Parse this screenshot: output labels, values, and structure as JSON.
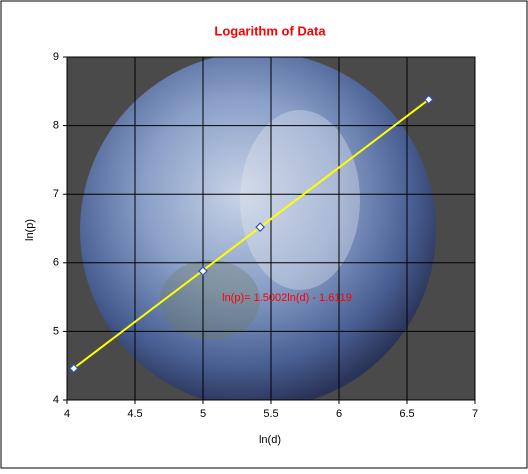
{
  "chart_data": {
    "type": "scatter",
    "title": "Logarithm of Data",
    "x_label": "ln(d)",
    "y_label": "ln(p)",
    "series": [
      {
        "name": "ln(p)",
        "color": "#3050c0",
        "x": [
          4.05,
          5.0,
          5.42,
          6.66
        ],
        "values": [
          4.46,
          5.88,
          6.52,
          8.38
        ]
      }
    ],
    "trendline": {
      "label": "ln(p)= 1.5002ln(d) - 1.6119",
      "slope": 1.5002,
      "intercept": -1.6119,
      "color": "#ffff00"
    },
    "xlim": [
      4,
      7
    ],
    "xticks": [
      4,
      4.5,
      5,
      5.5,
      6,
      6.5,
      7
    ],
    "ylim": [
      4,
      9
    ],
    "yticks": [
      4,
      5,
      6,
      7,
      8,
      9
    ],
    "grid": true
  }
}
